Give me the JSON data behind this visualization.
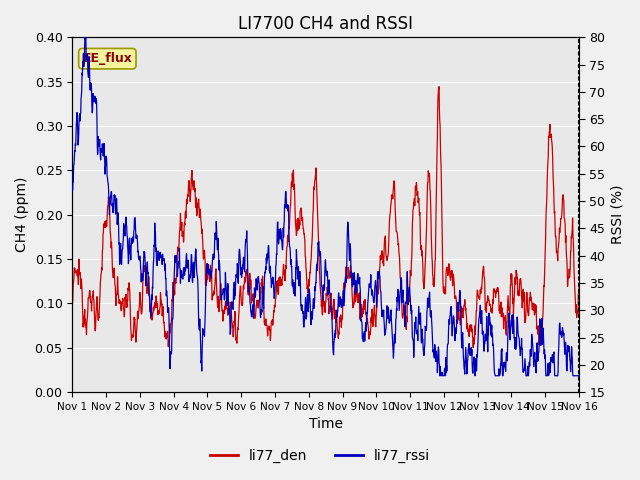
{
  "title": "LI7700 CH4 and RSSI",
  "xlabel": "Time",
  "ylabel_left": "CH4 (ppm)",
  "ylabel_right": "RSSI (%)",
  "xlim": [
    0,
    15
  ],
  "ylim_left": [
    0.0,
    0.4
  ],
  "ylim_right": [
    15,
    80
  ],
  "xtick_positions": [
    0,
    1,
    2,
    3,
    4,
    5,
    6,
    7,
    8,
    9,
    10,
    11,
    12,
    13,
    14,
    15
  ],
  "xtick_labels": [
    "Nov 1",
    "Nov 2",
    "Nov 3",
    "Nov 4",
    "Nov 5",
    "Nov 6",
    "Nov 7",
    "Nov 8",
    "Nov 9",
    "Nov 10",
    "Nov 11",
    "Nov 12",
    "Nov 13",
    "Nov 14",
    "Nov 15",
    "Nov 16"
  ],
  "yticks_left": [
    0.0,
    0.05,
    0.1,
    0.15,
    0.2,
    0.25,
    0.3,
    0.35,
    0.4
  ],
  "yticks_right": [
    15,
    20,
    25,
    30,
    35,
    40,
    45,
    50,
    55,
    60,
    65,
    70,
    75,
    80
  ],
  "color_red": "#cc0000",
  "color_blue": "#0000bb",
  "annotation_text": "EE_flux",
  "bg_color": "#e8e8e8",
  "fig_bg_color": "#f0f0f0",
  "legend_labels": [
    "li77_den",
    "li77_rssi"
  ],
  "grid_color": "#ffffff",
  "linewidth": 0.9
}
